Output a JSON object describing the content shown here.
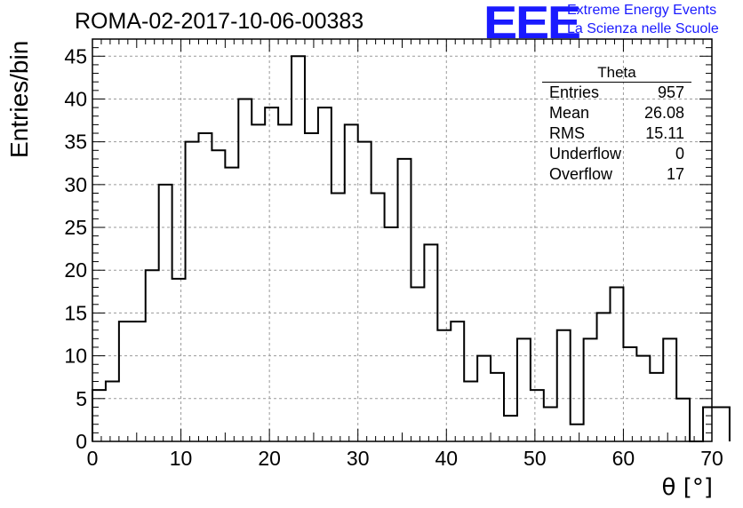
{
  "header": {
    "title": "ROMA-02-2017-10-06-00383",
    "logo_text": "EEE",
    "logo_line1": "Extreme Energy Events",
    "logo_line2": "La Scienza nelle Scuole",
    "accent_color": "#1a1aff"
  },
  "stats_box": {
    "title": "Theta",
    "rows": [
      {
        "label": "Entries",
        "value": "957"
      },
      {
        "label": "Mean",
        "value": "26.08"
      },
      {
        "label": "RMS",
        "value": "15.11"
      },
      {
        "label": "Underflow",
        "value": "0"
      },
      {
        "label": "Overflow",
        "value": "17"
      }
    ]
  },
  "chart_data": {
    "type": "bar",
    "style": "step-histogram",
    "title": "ROMA-02-2017-10-06-00383",
    "xlabel": "θ [°]",
    "ylabel": "Entries/bin",
    "xlim": [
      0,
      70
    ],
    "ylim": [
      0,
      47
    ],
    "grid": true,
    "bin_width": 1.5,
    "bin_start": 0,
    "xticks": [
      0,
      10,
      20,
      30,
      40,
      50,
      60,
      70
    ],
    "yticks": [
      0,
      5,
      10,
      15,
      20,
      25,
      30,
      35,
      40,
      45
    ],
    "values": [
      6,
      7,
      14,
      14,
      20,
      30,
      19,
      35,
      36,
      34,
      32,
      40,
      37,
      39,
      37,
      45,
      36,
      39,
      29,
      37,
      35,
      29,
      25,
      33,
      18,
      23,
      13,
      14,
      7,
      10,
      8,
      3,
      12,
      6,
      4,
      13,
      2,
      12,
      15,
      18,
      11,
      10,
      8,
      12,
      5,
      0,
      4,
      4
    ]
  }
}
